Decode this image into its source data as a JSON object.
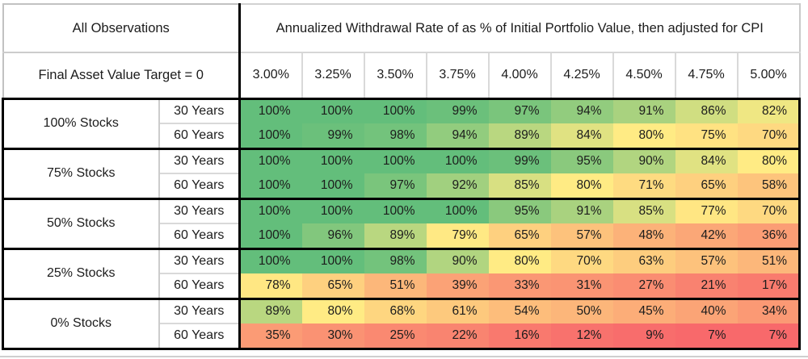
{
  "chart_data": {
    "type": "heatmap",
    "title": "Annualized Withdrawal Rate of as % of Initial Portfolio Value, then adjusted for CPI",
    "corner_label": "All Observations",
    "subheader_label": "Final Asset Value Target = 0",
    "columns": [
      "3.00%",
      "3.25%",
      "3.50%",
      "3.75%",
      "4.00%",
      "4.25%",
      "4.50%",
      "4.75%",
      "5.00%"
    ],
    "row_groups": [
      {
        "label": "100% Stocks",
        "rows": [
          {
            "label": "30 Years",
            "values": [
              100,
              100,
              100,
              99,
              97,
              94,
              91,
              86,
              82
            ]
          },
          {
            "label": "60 Years",
            "values": [
              100,
              99,
              98,
              94,
              89,
              84,
              80,
              75,
              70
            ]
          }
        ]
      },
      {
        "label": "75% Stocks",
        "rows": [
          {
            "label": "30 Years",
            "values": [
              100,
              100,
              100,
              100,
              99,
              95,
              90,
              84,
              80
            ]
          },
          {
            "label": "60 Years",
            "values": [
              100,
              100,
              97,
              92,
              85,
              80,
              71,
              65,
              58
            ]
          }
        ]
      },
      {
        "label": "50% Stocks",
        "rows": [
          {
            "label": "30 Years",
            "values": [
              100,
              100,
              100,
              100,
              95,
              91,
              85,
              77,
              70
            ]
          },
          {
            "label": "60 Years",
            "values": [
              100,
              96,
              89,
              79,
              65,
              57,
              48,
              42,
              36
            ]
          }
        ]
      },
      {
        "label": "25% Stocks",
        "rows": [
          {
            "label": "30 Years",
            "values": [
              100,
              100,
              98,
              90,
              80,
              70,
              63,
              57,
              51
            ]
          },
          {
            "label": "60 Years",
            "values": [
              78,
              65,
              51,
              39,
              33,
              31,
              27,
              21,
              17
            ]
          }
        ]
      },
      {
        "label": "0% Stocks",
        "rows": [
          {
            "label": "30 Years",
            "values": [
              89,
              80,
              68,
              61,
              54,
              50,
              45,
              40,
              34
            ]
          },
          {
            "label": "60 Years",
            "values": [
              35,
              30,
              25,
              22,
              16,
              12,
              9,
              7,
              7
            ]
          }
        ]
      }
    ],
    "value_format": "percent",
    "color_scale": {
      "min_value": 7,
      "mid_value": 80,
      "max_value": 100,
      "min_color": "#F8696B",
      "mid_color": "#FFEB84",
      "max_color": "#63BE7B"
    },
    "legend_position": "none",
    "grid": "excel-style group borders"
  }
}
